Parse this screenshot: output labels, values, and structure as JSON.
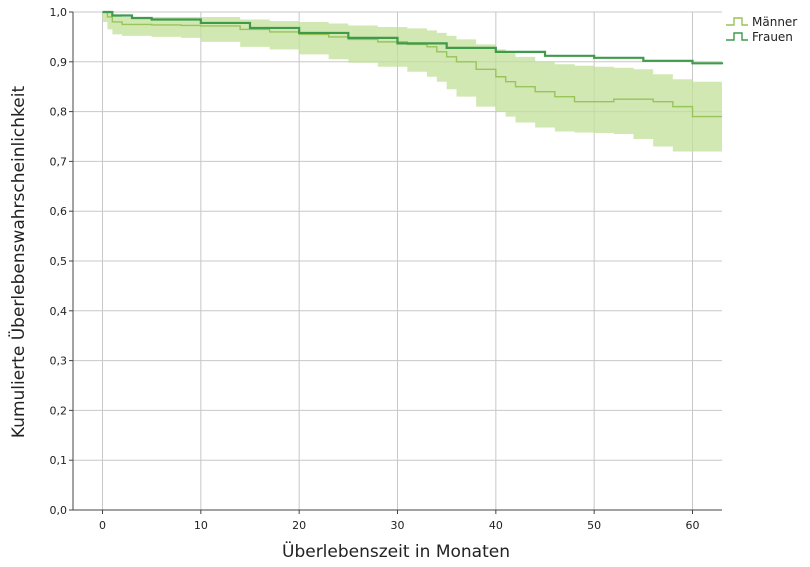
{
  "chart_data": {
    "type": "line",
    "subtype": "kaplan-meier-step",
    "xlabel": "Überlebenszeit in Monaten",
    "ylabel": "Kumulierte Überlebenswahrscheinlichkeit",
    "xlim": [
      -3,
      63
    ],
    "ylim": [
      0,
      1
    ],
    "xticks": [
      0,
      10,
      20,
      30,
      40,
      50,
      60
    ],
    "xtick_labels": [
      "0",
      "10",
      "20",
      "30",
      "40",
      "50",
      "60"
    ],
    "yticks": [
      0,
      0.1,
      0.2,
      0.3,
      0.4,
      0.5,
      0.6,
      0.7,
      0.8,
      0.9,
      1.0
    ],
    "ytick_labels": [
      "0,0",
      "0,1",
      "0,2",
      "0,3",
      "0,4",
      "0,5",
      "0,6",
      "0,7",
      "0,8",
      "0,9",
      "1,0"
    ],
    "grid": true,
    "legend_position": "top-right",
    "series": [
      {
        "name": "Männer",
        "color": "#98c45a",
        "band_color": "#c2e09a",
        "x": [
          0,
          0.5,
          1,
          2,
          5,
          8,
          10,
          14,
          17,
          20,
          23,
          25,
          28,
          31,
          33,
          34,
          35,
          36,
          38,
          40,
          41,
          42,
          44,
          46,
          48,
          50,
          52,
          54,
          56,
          58,
          60,
          63
        ],
        "y": [
          1.0,
          0.99,
          0.98,
          0.975,
          0.974,
          0.973,
          0.972,
          0.965,
          0.96,
          0.955,
          0.95,
          0.945,
          0.94,
          0.935,
          0.93,
          0.92,
          0.91,
          0.9,
          0.885,
          0.87,
          0.86,
          0.85,
          0.84,
          0.83,
          0.82,
          0.82,
          0.825,
          0.825,
          0.82,
          0.81,
          0.79,
          0.79
        ],
        "band_lower": [
          1.0,
          0.98,
          0.965,
          0.955,
          0.952,
          0.95,
          0.948,
          0.94,
          0.93,
          0.925,
          0.915,
          0.905,
          0.898,
          0.89,
          0.88,
          0.87,
          0.86,
          0.845,
          0.83,
          0.81,
          0.8,
          0.79,
          0.778,
          0.768,
          0.76,
          0.758,
          0.757,
          0.755,
          0.745,
          0.73,
          0.72,
          0.72
        ],
        "band_upper": [
          1.0,
          1.0,
          0.995,
          0.99,
          0.99,
          0.99,
          0.99,
          0.985,
          0.982,
          0.98,
          0.977,
          0.973,
          0.97,
          0.967,
          0.963,
          0.958,
          0.952,
          0.945,
          0.935,
          0.925,
          0.92,
          0.91,
          0.9,
          0.895,
          0.892,
          0.89,
          0.888,
          0.885,
          0.875,
          0.865,
          0.86,
          0.86
        ]
      },
      {
        "name": "Frauen",
        "color": "#3f9a4a",
        "x": [
          0,
          1,
          3,
          5,
          10,
          15,
          20,
          25,
          30,
          35,
          40,
          45,
          50,
          55,
          60,
          63
        ],
        "y": [
          1.0,
          0.993,
          0.988,
          0.985,
          0.978,
          0.968,
          0.958,
          0.948,
          0.937,
          0.928,
          0.92,
          0.912,
          0.908,
          0.902,
          0.897,
          0.895
        ]
      }
    ]
  }
}
